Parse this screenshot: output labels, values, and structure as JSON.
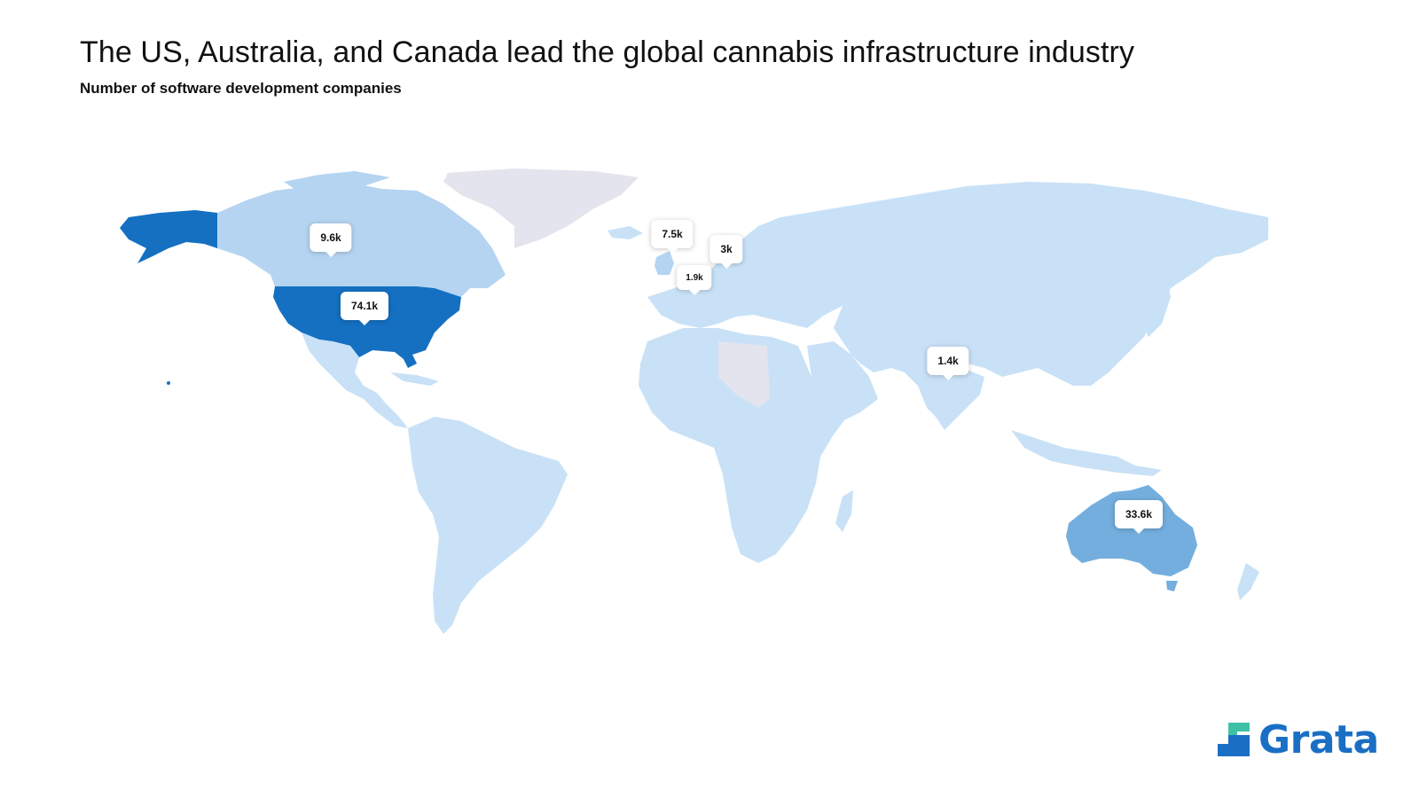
{
  "title": "The US, Australia, and Canada lead the global cannabis infrastructure industry",
  "subtitle": "Number of software development companies",
  "colors": {
    "darkest": "#1570c2",
    "mid": "#73aede",
    "light": "#b5d4f1",
    "lightest": "#c8e1f7",
    "nodata": "#e4e4ee"
  },
  "countries": [
    {
      "name": "United States",
      "value_label": "74.1k",
      "value": 74100,
      "shade": "darkest"
    },
    {
      "name": "Australia",
      "value_label": "33.6k",
      "value": 33600,
      "shade": "mid"
    },
    {
      "name": "Canada",
      "value_label": "9.6k",
      "value": 9600,
      "shade": "light"
    },
    {
      "name": "United Kingdom",
      "value_label": "7.5k",
      "value": 7500,
      "shade": "light"
    },
    {
      "name": "Germany",
      "value_label": "3k",
      "value": 3000,
      "shade": "lightest"
    },
    {
      "name": "France",
      "value_label": "1.9k",
      "value": 1900,
      "shade": "lightest"
    },
    {
      "name": "India",
      "value_label": "1.4k",
      "value": 1400,
      "shade": "lightest"
    }
  ],
  "logo": {
    "text": "Grata",
    "icon": "grata-logo-icon"
  }
}
